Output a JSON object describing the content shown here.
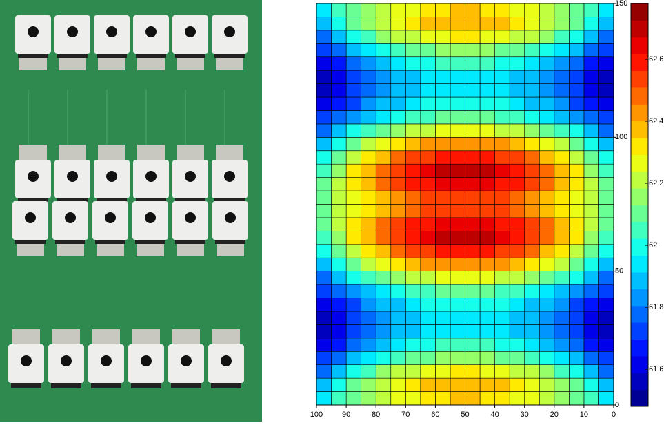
{
  "chart_data": {
    "type": "heatmap",
    "x": [
      2.5,
      7.5,
      12.5,
      17.5,
      22.5,
      27.5,
      32.5,
      37.5,
      42.5,
      47.5,
      52.5,
      57.5,
      62.5,
      67.5,
      72.5,
      77.5,
      82.5,
      87.5,
      92.5,
      97.5
    ],
    "y": [
      2.5,
      7.5,
      12.5,
      17.5,
      22.5,
      27.5,
      32.5,
      37.5,
      42.5,
      47.5,
      52.5,
      57.5,
      62.5,
      67.5,
      72.5,
      77.5,
      82.5,
      87.5,
      92.5,
      97.5,
      102.5,
      107.5,
      112.5,
      117.5,
      122.5,
      127.5,
      132.5,
      137.5,
      142.5,
      147.5
    ],
    "z": [
      [
        61.95,
        62.03,
        62.1,
        62.16,
        62.21,
        62.26,
        62.29,
        62.32,
        62.34,
        62.35,
        62.35,
        62.34,
        62.32,
        62.29,
        62.26,
        62.21,
        62.16,
        62.1,
        62.03,
        61.95
      ],
      [
        61.9,
        62,
        62.09,
        62.17,
        62.23,
        62.29,
        62.33,
        62.37,
        62.39,
        62.4,
        62.4,
        62.39,
        62.37,
        62.33,
        62.29,
        62.23,
        62.17,
        62.09,
        62,
        61.9
      ],
      [
        61.8,
        61.9,
        61.99,
        62.07,
        62.13,
        62.19,
        62.23,
        62.27,
        62.29,
        62.3,
        62.3,
        62.29,
        62.27,
        62.23,
        62.19,
        62.13,
        62.07,
        61.99,
        61.9,
        61.8
      ],
      [
        61.7,
        61.79,
        61.87,
        61.94,
        62,
        62.05,
        62.09,
        62.12,
        62.14,
        62.15,
        62.15,
        62.14,
        62.12,
        62.09,
        62.05,
        62,
        61.94,
        61.87,
        61.79,
        61.7
      ],
      [
        61.6,
        61.69,
        61.77,
        61.84,
        61.9,
        61.95,
        61.99,
        62.02,
        62.04,
        62.05,
        62.05,
        62.04,
        62.02,
        61.99,
        61.95,
        61.9,
        61.84,
        61.77,
        61.69,
        61.6
      ],
      [
        61.55,
        61.63,
        61.7,
        61.76,
        61.81,
        61.86,
        61.89,
        61.92,
        61.94,
        61.95,
        61.95,
        61.94,
        61.92,
        61.89,
        61.86,
        61.81,
        61.76,
        61.7,
        61.63,
        61.55
      ],
      [
        61.55,
        61.63,
        61.7,
        61.76,
        61.81,
        61.86,
        61.89,
        61.92,
        61.94,
        61.95,
        61.95,
        61.94,
        61.92,
        61.89,
        61.86,
        61.81,
        61.76,
        61.7,
        61.63,
        61.55
      ],
      [
        61.6,
        61.68,
        61.75,
        61.81,
        61.86,
        61.91,
        61.94,
        61.97,
        61.99,
        62,
        62,
        61.99,
        61.97,
        61.94,
        61.91,
        61.86,
        61.81,
        61.75,
        61.68,
        61.6
      ],
      [
        61.7,
        61.78,
        61.85,
        61.91,
        61.96,
        62.01,
        62.04,
        62.07,
        62.09,
        62.1,
        62.1,
        62.09,
        62.07,
        62.04,
        62.01,
        61.96,
        61.91,
        61.85,
        61.78,
        61.7
      ],
      [
        61.8,
        61.89,
        61.97,
        62.04,
        62.1,
        62.15,
        62.19,
        62.22,
        62.24,
        62.25,
        62.25,
        62.24,
        62.22,
        62.19,
        62.15,
        62.1,
        62.04,
        61.97,
        61.89,
        61.8
      ],
      [
        61.9,
        62.01,
        62.11,
        62.19,
        62.26,
        62.32,
        62.37,
        62.41,
        62.44,
        62.45,
        62.45,
        62.44,
        62.41,
        62.37,
        62.32,
        62.26,
        62.19,
        62.11,
        62.01,
        61.9
      ],
      [
        62,
        62.12,
        62.23,
        62.32,
        62.4,
        62.46,
        62.52,
        62.56,
        62.59,
        62.6,
        62.6,
        62.59,
        62.56,
        62.52,
        62.46,
        62.4,
        62.32,
        62.23,
        62.12,
        62
      ],
      [
        62.05,
        62.18,
        62.3,
        62.39,
        62.48,
        62.55,
        62.61,
        62.65,
        62.69,
        62.7,
        62.7,
        62.69,
        62.65,
        62.61,
        62.55,
        62.48,
        62.39,
        62.3,
        62.18,
        62.05
      ],
      [
        62.1,
        62.21,
        62.31,
        62.39,
        62.46,
        62.52,
        62.57,
        62.61,
        62.64,
        62.65,
        62.65,
        62.64,
        62.61,
        62.57,
        62.52,
        62.46,
        62.39,
        62.31,
        62.21,
        62.1
      ],
      [
        62.1,
        62.19,
        62.27,
        62.34,
        62.4,
        62.45,
        62.49,
        62.52,
        62.54,
        62.55,
        62.55,
        62.54,
        62.52,
        62.49,
        62.45,
        62.4,
        62.34,
        62.27,
        62.19,
        62.1
      ],
      [
        62.1,
        62.19,
        62.27,
        62.34,
        62.4,
        62.45,
        62.49,
        62.52,
        62.54,
        62.55,
        62.55,
        62.54,
        62.52,
        62.49,
        62.45,
        62.4,
        62.34,
        62.27,
        62.19,
        62.1
      ],
      [
        62.1,
        62.21,
        62.31,
        62.39,
        62.46,
        62.52,
        62.57,
        62.61,
        62.64,
        62.65,
        62.65,
        62.64,
        62.61,
        62.57,
        62.52,
        62.46,
        62.39,
        62.31,
        62.21,
        62.1
      ],
      [
        62.05,
        62.18,
        62.3,
        62.39,
        62.48,
        62.55,
        62.61,
        62.65,
        62.69,
        62.7,
        62.7,
        62.69,
        62.65,
        62.61,
        62.55,
        62.48,
        62.39,
        62.3,
        62.18,
        62.05
      ],
      [
        62,
        62.12,
        62.23,
        62.32,
        62.4,
        62.46,
        62.52,
        62.56,
        62.59,
        62.6,
        62.6,
        62.59,
        62.56,
        62.52,
        62.46,
        62.4,
        62.32,
        62.23,
        62.12,
        62
      ],
      [
        61.9,
        62.01,
        62.11,
        62.19,
        62.26,
        62.32,
        62.37,
        62.41,
        62.44,
        62.45,
        62.45,
        62.44,
        62.41,
        62.37,
        62.32,
        62.26,
        62.19,
        62.11,
        62.01,
        61.9
      ],
      [
        61.8,
        61.89,
        61.97,
        62.04,
        62.1,
        62.15,
        62.19,
        62.22,
        62.24,
        62.25,
        62.25,
        62.24,
        62.22,
        62.19,
        62.15,
        62.1,
        62.04,
        61.97,
        61.89,
        61.8
      ],
      [
        61.7,
        61.78,
        61.85,
        61.91,
        61.96,
        62.01,
        62.04,
        62.07,
        62.09,
        62.1,
        62.1,
        62.09,
        62.07,
        62.04,
        62.01,
        61.96,
        61.91,
        61.85,
        61.78,
        61.7
      ],
      [
        61.6,
        61.68,
        61.75,
        61.81,
        61.86,
        61.91,
        61.94,
        61.97,
        61.99,
        62,
        62,
        61.99,
        61.97,
        61.94,
        61.91,
        61.86,
        61.81,
        61.75,
        61.68,
        61.6
      ],
      [
        61.55,
        61.63,
        61.7,
        61.76,
        61.81,
        61.86,
        61.89,
        61.92,
        61.94,
        61.95,
        61.95,
        61.94,
        61.92,
        61.89,
        61.86,
        61.81,
        61.76,
        61.7,
        61.63,
        61.55
      ],
      [
        61.55,
        61.63,
        61.7,
        61.76,
        61.81,
        61.86,
        61.89,
        61.92,
        61.94,
        61.95,
        61.95,
        61.94,
        61.92,
        61.89,
        61.86,
        61.81,
        61.76,
        61.7,
        61.63,
        61.55
      ],
      [
        61.6,
        61.69,
        61.77,
        61.84,
        61.9,
        61.95,
        61.99,
        62.02,
        62.04,
        62.05,
        62.05,
        62.04,
        62.02,
        61.99,
        61.95,
        61.9,
        61.84,
        61.77,
        61.69,
        61.6
      ],
      [
        61.7,
        61.79,
        61.87,
        61.94,
        62,
        62.05,
        62.09,
        62.12,
        62.14,
        62.15,
        62.15,
        62.14,
        62.12,
        62.09,
        62.05,
        62,
        61.94,
        61.87,
        61.79,
        61.7
      ],
      [
        61.8,
        61.9,
        61.99,
        62.07,
        62.13,
        62.19,
        62.23,
        62.27,
        62.29,
        62.3,
        62.3,
        62.29,
        62.27,
        62.23,
        62.19,
        62.13,
        62.07,
        61.99,
        61.9,
        61.8
      ],
      [
        61.9,
        62,
        62.09,
        62.17,
        62.23,
        62.29,
        62.33,
        62.37,
        62.39,
        62.4,
        62.4,
        62.39,
        62.37,
        62.33,
        62.29,
        62.23,
        62.17,
        62.09,
        62,
        61.9
      ],
      [
        61.95,
        62.03,
        62.1,
        62.16,
        62.21,
        62.26,
        62.29,
        62.32,
        62.34,
        62.35,
        62.35,
        62.34,
        62.32,
        62.29,
        62.26,
        62.21,
        62.16,
        62.1,
        62.03,
        61.95
      ]
    ],
    "xlim": [
      100,
      0
    ],
    "ylim": [
      0,
      150
    ],
    "xticks": [
      100,
      90,
      80,
      70,
      60,
      50,
      40,
      30,
      20,
      10,
      0
    ],
    "yticks": [
      0,
      50,
      100,
      150
    ],
    "clim": [
      61.48,
      62.78
    ],
    "cticks": [
      61.6,
      61.8,
      62,
      62.2,
      62.4,
      62.6
    ],
    "colormap": "jet"
  }
}
